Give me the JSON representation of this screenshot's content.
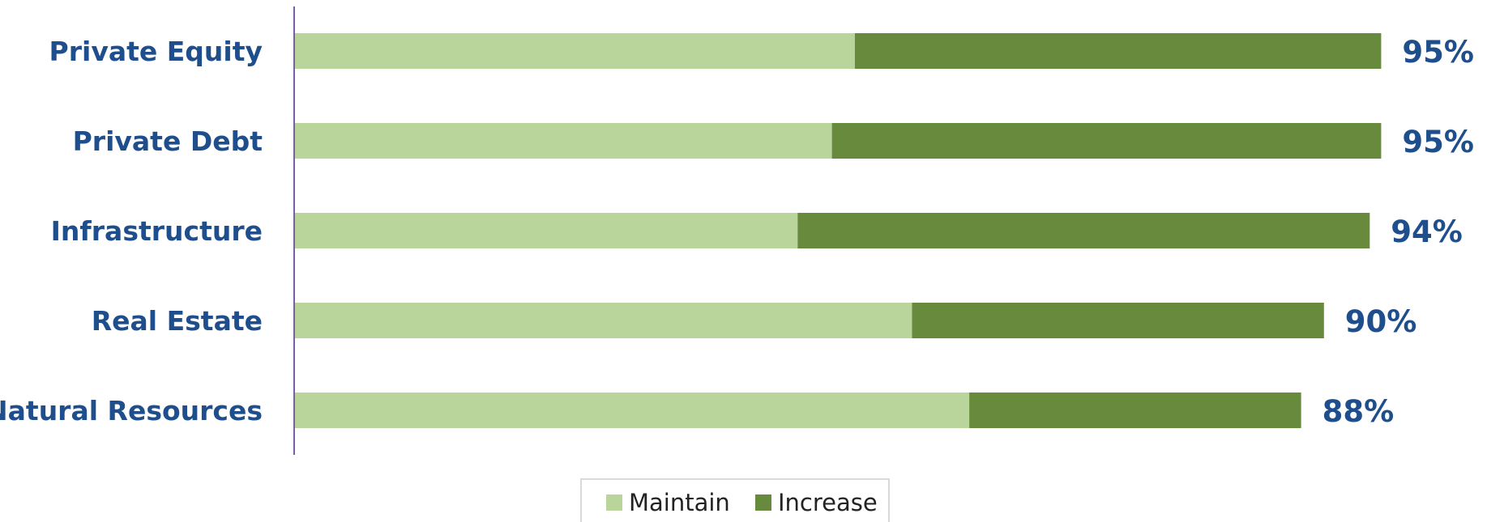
{
  "chart_data": {
    "type": "bar",
    "orientation": "horizontal",
    "stacked": true,
    "title": "",
    "xlabel": "",
    "ylabel": "",
    "categories": [
      "Private Equity",
      "Private Debt",
      "Infrastructure",
      "Real Estate",
      "Natural Resources"
    ],
    "series": [
      {
        "name": "Maintain",
        "values": [
          49,
          47,
          44,
          54,
          59
        ],
        "color": "#bad59b"
      },
      {
        "name": "Increase",
        "values": [
          46,
          48,
          50,
          36,
          29
        ],
        "color": "#688a3c"
      }
    ],
    "totals": [
      "95%",
      "95%",
      "94%",
      "90%",
      "88%"
    ],
    "xlim": [
      0,
      100
    ],
    "grid": false,
    "legend": "bottom"
  }
}
